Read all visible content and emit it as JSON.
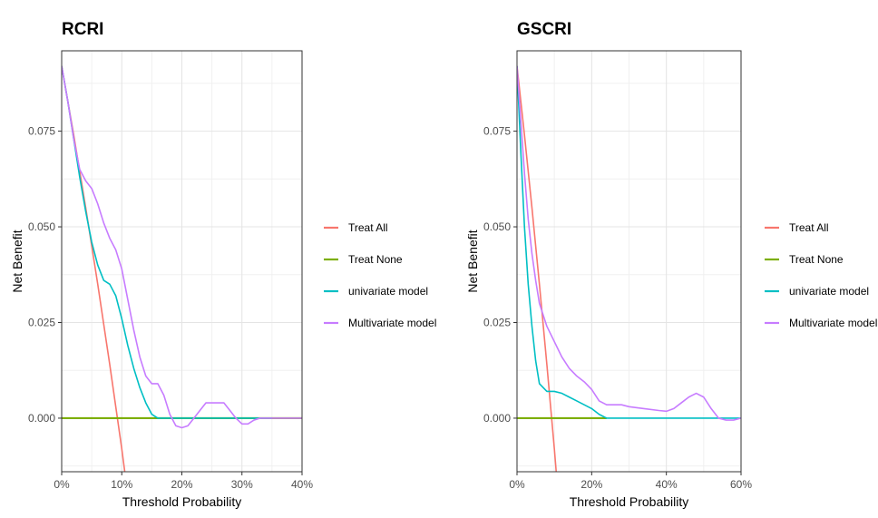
{
  "chart_data": [
    {
      "type": "line",
      "title": "RCRI",
      "xlabel": "Threshold Probability",
      "ylabel": "Net Benefit",
      "xlim": [
        0,
        0.4
      ],
      "ylim": [
        -0.014,
        0.096
      ],
      "x_ticks": [
        0,
        0.1,
        0.2,
        0.3,
        0.4
      ],
      "x_tick_labels": [
        "0%",
        "10%",
        "20%",
        "30%",
        "40%"
      ],
      "y_ticks": [
        0,
        0.025,
        0.05,
        0.075
      ],
      "y_tick_labels": [
        "0.000",
        "0.025",
        "0.050",
        "0.075"
      ],
      "grid": true,
      "legend_position": "right",
      "series": [
        {
          "name": "Treat All",
          "color": "#F8766D",
          "x": [
            0,
            0.02,
            0.04,
            0.06,
            0.08,
            0.1,
            0.105
          ],
          "y": [
            0.092,
            0.074,
            0.055,
            0.035,
            0.014,
            -0.008,
            -0.014
          ]
        },
        {
          "name": "Treat None",
          "color": "#7CAE00",
          "x": [
            0,
            0.4
          ],
          "y": [
            0,
            0
          ]
        },
        {
          "name": "univariate model",
          "color": "#00BFC4",
          "x": [
            0,
            0.01,
            0.02,
            0.03,
            0.04,
            0.05,
            0.06,
            0.07,
            0.08,
            0.09,
            0.1,
            0.11,
            0.12,
            0.13,
            0.14,
            0.15,
            0.16,
            0.2,
            0.3,
            0.35
          ],
          "y": [
            0.092,
            0.083,
            0.073,
            0.063,
            0.054,
            0.046,
            0.04,
            0.036,
            0.035,
            0.032,
            0.026,
            0.019,
            0.013,
            0.008,
            0.004,
            0.001,
            0.0,
            0.0,
            0.0,
            0.0
          ]
        },
        {
          "name": "Multivariate model",
          "color": "#C77CFF",
          "x": [
            0,
            0.01,
            0.02,
            0.03,
            0.04,
            0.05,
            0.06,
            0.07,
            0.08,
            0.09,
            0.1,
            0.11,
            0.12,
            0.13,
            0.14,
            0.15,
            0.16,
            0.17,
            0.18,
            0.19,
            0.2,
            0.21,
            0.22,
            0.23,
            0.24,
            0.25,
            0.26,
            0.27,
            0.28,
            0.29,
            0.3,
            0.31,
            0.32,
            0.33,
            0.34,
            0.36,
            0.4
          ],
          "y": [
            0.092,
            0.083,
            0.073,
            0.065,
            0.062,
            0.06,
            0.056,
            0.051,
            0.047,
            0.044,
            0.039,
            0.031,
            0.023,
            0.016,
            0.011,
            0.009,
            0.009,
            0.006,
            0.001,
            -0.002,
            -0.0025,
            -0.002,
            0.0,
            0.002,
            0.004,
            0.004,
            0.004,
            0.004,
            0.002,
            0.0,
            -0.0015,
            -0.0015,
            -0.0005,
            0.0,
            0.0,
            0.0,
            0.0
          ]
        }
      ]
    },
    {
      "type": "line",
      "title": "GSCRI",
      "xlabel": "Threshold Probability",
      "ylabel": "Net Benefit",
      "xlim": [
        0,
        0.6
      ],
      "ylim": [
        -0.014,
        0.096
      ],
      "x_ticks": [
        0,
        0.2,
        0.4,
        0.6
      ],
      "x_tick_labels": [
        "0%",
        "20%",
        "40%",
        "60%"
      ],
      "y_ticks": [
        0,
        0.025,
        0.05,
        0.075
      ],
      "y_tick_labels": [
        "0.000",
        "0.025",
        "0.050",
        "0.075"
      ],
      "grid": true,
      "legend_position": "right",
      "series": [
        {
          "name": "Treat All",
          "color": "#F8766D",
          "x": [
            0,
            0.02,
            0.04,
            0.06,
            0.08,
            0.1,
            0.105
          ],
          "y": [
            0.092,
            0.074,
            0.055,
            0.035,
            0.014,
            -0.008,
            -0.014
          ]
        },
        {
          "name": "Treat None",
          "color": "#7CAE00",
          "x": [
            0,
            0.24
          ],
          "y": [
            0,
            0
          ]
        },
        {
          "name": "univariate model",
          "color": "#00BFC4",
          "x": [
            0,
            0.01,
            0.02,
            0.03,
            0.04,
            0.05,
            0.06,
            0.08,
            0.1,
            0.12,
            0.14,
            0.16,
            0.18,
            0.2,
            0.22,
            0.24,
            0.25,
            0.4,
            0.6
          ],
          "y": [
            0.092,
            0.07,
            0.05,
            0.035,
            0.024,
            0.015,
            0.009,
            0.007,
            0.007,
            0.0065,
            0.0055,
            0.0045,
            0.0035,
            0.0025,
            0.001,
            0.0,
            0.0,
            0.0,
            0.0
          ]
        },
        {
          "name": "Multivariate model",
          "color": "#C77CFF",
          "x": [
            0,
            0.01,
            0.02,
            0.03,
            0.04,
            0.05,
            0.06,
            0.08,
            0.1,
            0.12,
            0.14,
            0.16,
            0.18,
            0.2,
            0.22,
            0.24,
            0.26,
            0.28,
            0.3,
            0.34,
            0.38,
            0.4,
            0.42,
            0.44,
            0.46,
            0.48,
            0.5,
            0.52,
            0.54,
            0.56,
            0.58,
            0.6
          ],
          "y": [
            0.092,
            0.078,
            0.064,
            0.052,
            0.043,
            0.036,
            0.03,
            0.024,
            0.02,
            0.016,
            0.013,
            0.011,
            0.0095,
            0.0075,
            0.0045,
            0.0035,
            0.0035,
            0.0035,
            0.003,
            0.0025,
            0.002,
            0.0018,
            0.0025,
            0.004,
            0.0055,
            0.0065,
            0.0055,
            0.0025,
            0.0,
            -0.0005,
            -0.0005,
            0.0
          ]
        }
      ]
    }
  ]
}
